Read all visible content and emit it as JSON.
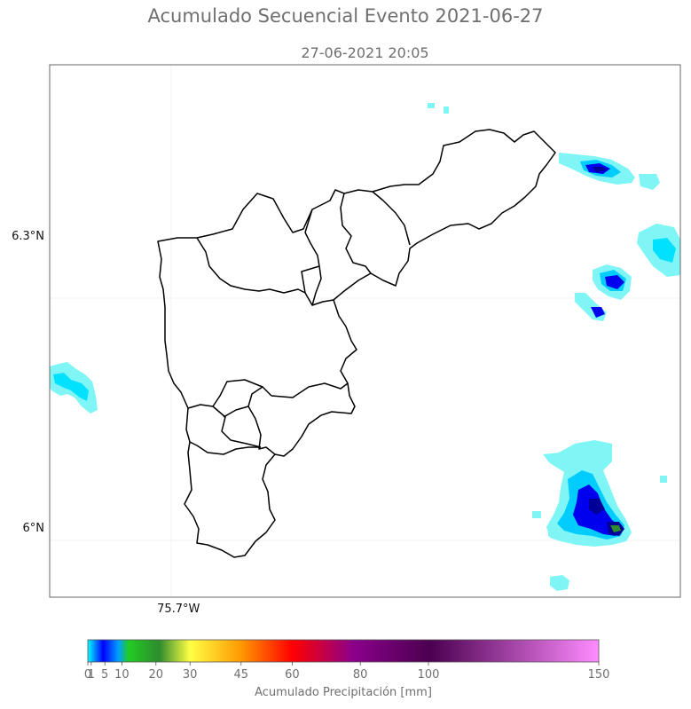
{
  "title": "Acumulado Secuencial Evento 2021-06-27",
  "subtitle": "27-06-2021 20:05",
  "map": {
    "lon_range": [
      -75.808,
      -75.286
    ],
    "lat_range": [
      5.931,
      6.478
    ],
    "lat_ticks": [
      {
        "value": 6.3,
        "label": "6.3°N"
      },
      {
        "value": 6.0,
        "label": "6°N"
      }
    ],
    "lon_ticks": [
      {
        "value": -75.7,
        "label": "75.7°W"
      }
    ],
    "boundary_color": "#000000"
  },
  "colorbar": {
    "label": "Acumulado Precipitación [mm]",
    "min": 0,
    "max": 150,
    "ticks": [
      {
        "value": 0,
        "label": "0"
      },
      {
        "value": 1,
        "label": "1"
      },
      {
        "value": 5,
        "label": "5"
      },
      {
        "value": 10,
        "label": "10"
      },
      {
        "value": 20,
        "label": "20"
      },
      {
        "value": 30,
        "label": "30"
      },
      {
        "value": 45,
        "label": "45"
      },
      {
        "value": 60,
        "label": "60"
      },
      {
        "value": 80,
        "label": "80"
      },
      {
        "value": 100,
        "label": "100"
      },
      {
        "value": 150,
        "label": "150"
      }
    ],
    "colors": [
      "#00ffff",
      "#0000ff",
      "#00b000",
      "#ffff00",
      "#ff8c00",
      "#ff0000",
      "#800080",
      "#ff88ff"
    ]
  },
  "colors": {
    "rain_light": "#7ff5f5",
    "rain_mid": "#00ccff",
    "rain_heavy": "#0000ee",
    "rain_dark": "#000099",
    "rain_core": "#2e8b2e"
  }
}
